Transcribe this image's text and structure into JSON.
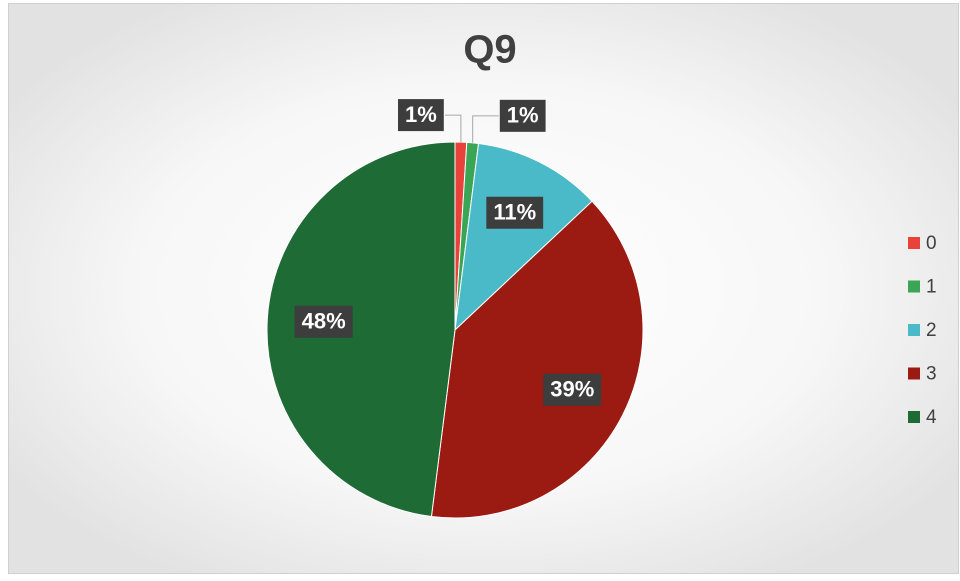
{
  "chart_data": {
    "type": "pie",
    "title": "Q9",
    "categories": [
      "0",
      "1",
      "2",
      "3",
      "4"
    ],
    "values": [
      1,
      1,
      11,
      39,
      48
    ],
    "value_labels": [
      "1%",
      "1%",
      "11%",
      "39%",
      "48%"
    ],
    "colors": [
      "#e8423a",
      "#3aa655",
      "#4bbac8",
      "#9b1b12",
      "#1e6b35"
    ],
    "legend": "right"
  }
}
